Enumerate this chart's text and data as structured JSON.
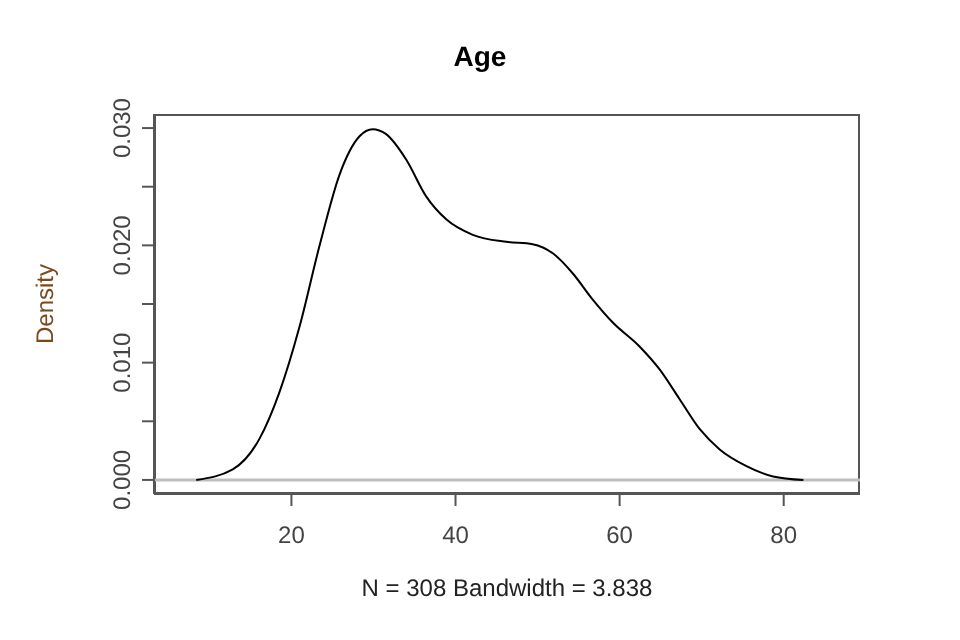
{
  "chart_data": {
    "type": "line",
    "title": "Age",
    "xlabel": "N = 308   Bandwidth = 3.838",
    "ylabel": "Density",
    "x": [
      8.4,
      12.85,
      16.1,
      18.5,
      21.0,
      23.4,
      25.9,
      28.3,
      29.9,
      31.5,
      34.0,
      36.4,
      38.9,
      42.1,
      46.2,
      49.4,
      51.9,
      54.3,
      56.7,
      59.2,
      62.4,
      64.9,
      67.3,
      69.8,
      72.2,
      75.4,
      78.7,
      82.4
    ],
    "series": [
      {
        "color": "#000000",
        "values": [
          0,
          0.0009,
          0.0035,
          0.0074,
          0.0131,
          0.0199,
          0.0261,
          0.0293,
          0.0299,
          0.0295,
          0.0273,
          0.0242,
          0.0222,
          0.0209,
          0.0203,
          0.0201,
          0.0193,
          0.0176,
          0.0154,
          0.0134,
          0.0114,
          0.0094,
          0.0069,
          0.0043,
          0.0026,
          0.0012,
          0.0003,
          0
        ]
      }
    ],
    "xlim": [
      3.25,
      89.3
    ],
    "xticks": [
      20,
      40,
      60,
      80
    ],
    "ylim": [
      -0.0012,
      0.0312
    ],
    "yticks": [
      {
        "value": 0,
        "label": "0.000"
      },
      {
        "value": 0.005,
        "label": null
      },
      {
        "value": 0.01,
        "label": "0.010"
      },
      {
        "value": 0.015,
        "label": null
      },
      {
        "value": 0.02,
        "label": "0.020"
      },
      {
        "value": 0.025,
        "label": null
      },
      {
        "value": 0.03,
        "label": "0.030"
      }
    ],
    "ref_lines": [
      {
        "axis": "y",
        "value": 0,
        "color": "#bebebe"
      }
    ],
    "grid": false,
    "legend": false,
    "marker": "none",
    "line_style": "solid"
  }
}
